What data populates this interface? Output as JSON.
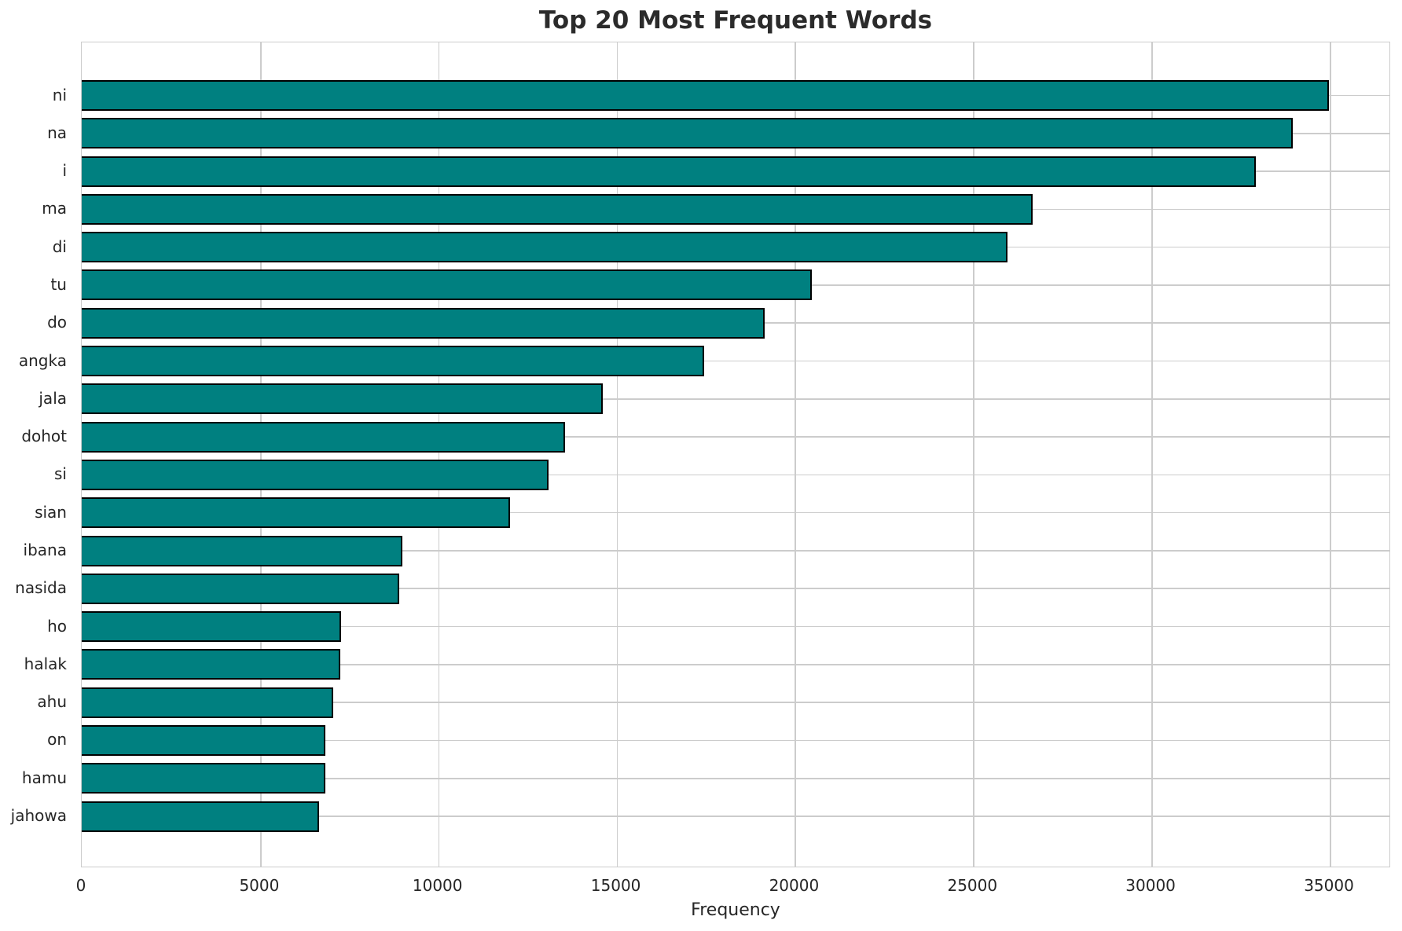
{
  "chart_data": {
    "type": "bar",
    "orientation": "horizontal",
    "title": "Top 20 Most Frequent Words",
    "xlabel": "Frequency",
    "ylabel": "",
    "categories": [
      "ni",
      "na",
      "i",
      "ma",
      "di",
      "tu",
      "do",
      "angka",
      "jala",
      "dohot",
      "si",
      "sian",
      "ibana",
      "nasida",
      "ho",
      "halak",
      "ahu",
      "on",
      "hamu",
      "jahowa"
    ],
    "values": [
      34980,
      33970,
      32930,
      26670,
      25960,
      20480,
      19150,
      17460,
      14610,
      13550,
      13090,
      12020,
      8990,
      8900,
      7270,
      7250,
      7050,
      6840,
      6830,
      6660
    ],
    "xlim": [
      0,
      36720
    ],
    "xticks": [
      0,
      5000,
      10000,
      15000,
      20000,
      25000,
      30000,
      35000
    ],
    "xtick_labels": [
      "0",
      "5000",
      "10000",
      "15000",
      "20000",
      "25000",
      "30000",
      "35000"
    ],
    "grid": true,
    "legend": "none",
    "bar_color": "#008080",
    "bar_edge_color": "#000000",
    "grid_color": "#cccccc",
    "text_color": "#262626",
    "title_color": "#2b2b2b"
  }
}
